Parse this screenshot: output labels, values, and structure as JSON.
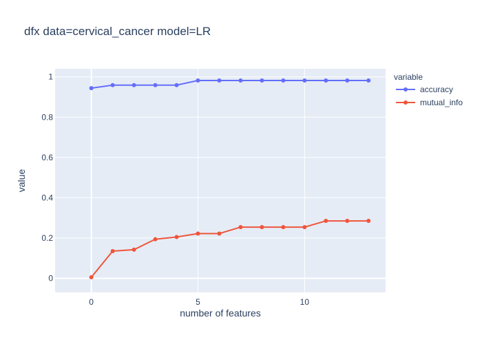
{
  "chart_data": {
    "type": "line",
    "title": "dfx data=cervical_cancer model=LR",
    "xlabel": "number of features",
    "ylabel": "value",
    "xlim": [
      -1.7,
      13.8
    ],
    "ylim": [
      -0.07,
      1.04
    ],
    "x_ticks": [
      0,
      5,
      10
    ],
    "x_tick_labels": [
      "0",
      "5",
      "10"
    ],
    "y_ticks": [
      0,
      0.2,
      0.4,
      0.6,
      0.8,
      1
    ],
    "y_tick_labels": [
      "0",
      "0.2",
      "0.4",
      "0.6",
      "0.8",
      "1"
    ],
    "grid": true,
    "legend": {
      "title": "variable",
      "position": "right"
    },
    "x": [
      0,
      1,
      2,
      3,
      4,
      5,
      6,
      7,
      8,
      9,
      10,
      11,
      12,
      13
    ],
    "series": [
      {
        "name": "accuracy",
        "color": "#636efa",
        "values": [
          0.944,
          0.959,
          0.959,
          0.959,
          0.959,
          0.982,
          0.982,
          0.982,
          0.982,
          0.982,
          0.982,
          0.982,
          0.982,
          0.982
        ]
      },
      {
        "name": "mutual_info",
        "color": "#ef553b",
        "values": [
          0.005,
          0.135,
          0.142,
          0.194,
          0.205,
          0.222,
          0.222,
          0.254,
          0.254,
          0.254,
          0.254,
          0.285,
          0.285,
          0.285
        ]
      }
    ]
  },
  "colors": {
    "plot_bg": "#e5ecf6",
    "grid": "#ffffff",
    "text": "#2a3f5f"
  }
}
